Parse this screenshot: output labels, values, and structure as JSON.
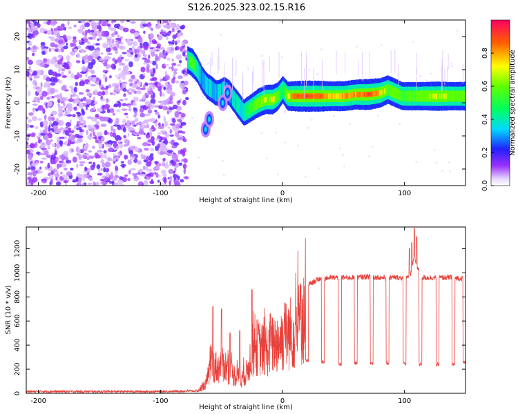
{
  "chart_data": [
    {
      "type": "heatmap",
      "title": "S126.2025.323.02.15.R16",
      "xlabel": "Height of straight line (km)",
      "ylabel": "Frequency (Hz)",
      "xlim": [
        -210,
        150
      ],
      "ylim": [
        -25,
        25
      ],
      "xticks": [
        {
          "value": -200,
          "label": "-200"
        },
        {
          "value": -100,
          "label": "-100"
        },
        {
          "value": 0,
          "label": "0"
        },
        {
          "value": 100,
          "label": "100"
        }
      ],
      "yticks": [
        {
          "value": 20,
          "label": "20"
        },
        {
          "value": 10,
          "label": "10"
        },
        {
          "value": 0,
          "label": "0"
        },
        {
          "value": -10,
          "label": "-10"
        },
        {
          "value": -20,
          "label": "-20"
        }
      ],
      "noise_region_x": [
        -210,
        -78
      ],
      "ridge": {
        "x": [
          -78,
          -74,
          -70,
          -66,
          -62,
          -58,
          -55,
          -52,
          -48,
          -44,
          -40,
          -36,
          -32,
          -28,
          -24,
          -20,
          -14,
          -8,
          -4,
          0,
          4,
          10,
          20,
          30,
          40,
          50,
          60,
          70,
          80,
          86,
          92,
          98,
          104,
          110,
          120,
          130,
          140,
          150
        ],
        "y": [
          13,
          12,
          10,
          7,
          5,
          4,
          3,
          3,
          4,
          3,
          1,
          -1,
          -3,
          -2,
          -1,
          0,
          1,
          1,
          2,
          4,
          2,
          2,
          2,
          2,
          2,
          2,
          2.5,
          2.5,
          3,
          4,
          3,
          2,
          2,
          2,
          2,
          2,
          2,
          2
        ],
        "amp": [
          0.45,
          0.6,
          0.4,
          0.3,
          0.35,
          0.35,
          0.3,
          0.35,
          0.3,
          0.3,
          0.35,
          0.4,
          0.35,
          0.5,
          0.55,
          0.65,
          0.7,
          0.75,
          0.55,
          0.45,
          0.7,
          0.85,
          0.9,
          0.9,
          0.75,
          0.8,
          0.8,
          0.9,
          0.75,
          0.6,
          0.65,
          0.55,
          0.6,
          0.6,
          0.65,
          0.7,
          0.6,
          0.65
        ]
      },
      "side_lobes": [
        {
          "x": -63,
          "y": -8,
          "amp": 0.35
        },
        {
          "x": -60,
          "y": -5,
          "amp": 0.35
        },
        {
          "x": -49,
          "y": 0,
          "amp": 0.35
        },
        {
          "x": -45,
          "y": 3,
          "amp": 0.35
        }
      ],
      "colorbar": {
        "label": "Normalized spectral amplitude",
        "range": [
          0.0,
          1.0
        ],
        "ticks": [
          {
            "value": 0.0,
            "label": "0.0"
          },
          {
            "value": 0.2,
            "label": "0.2"
          },
          {
            "value": 0.4,
            "label": "0.4"
          },
          {
            "value": 0.6,
            "label": "0.6"
          },
          {
            "value": 0.8,
            "label": "0.8"
          }
        ]
      }
    },
    {
      "type": "line",
      "xlabel": "Height of straight line (km)",
      "ylabel": "SNR (10 * v/v)",
      "xlim": [
        -210,
        150
      ],
      "ylim": [
        0,
        1380
      ],
      "color": "#e8403a",
      "xticks": [
        {
          "value": -200,
          "label": "-200"
        },
        {
          "value": -100,
          "label": "-100"
        },
        {
          "value": 0,
          "label": "0"
        },
        {
          "value": 100,
          "label": "100"
        }
      ],
      "yticks": [
        {
          "value": 0,
          "label": "0"
        },
        {
          "value": 200,
          "label": "200"
        },
        {
          "value": 400,
          "label": "400"
        },
        {
          "value": 600,
          "label": "600"
        },
        {
          "value": 800,
          "label": "800"
        },
        {
          "value": 1000,
          "label": "1000"
        },
        {
          "value": 1200,
          "label": "1200"
        }
      ],
      "envelope": {
        "x": [
          -210,
          -150,
          -100,
          -70,
          -63,
          -58,
          -53,
          -48,
          -43,
          -38,
          -33,
          -29,
          -25,
          -20,
          -15,
          -10,
          -5,
          0,
          5,
          10,
          15,
          20,
          25,
          30,
          40,
          50,
          60,
          70,
          80,
          90,
          100,
          105,
          108,
          110,
          115,
          120,
          130,
          140,
          150
        ],
        "y": [
          15,
          15,
          15,
          20,
          100,
          350,
          300,
          350,
          250,
          200,
          180,
          250,
          500,
          550,
          500,
          550,
          600,
          650,
          700,
          750,
          850,
          900,
          920,
          950,
          960,
          960,
          960,
          970,
          960,
          960,
          960,
          980,
          1150,
          1050,
          960,
          960,
          960,
          960,
          950
        ]
      },
      "dropouts": [
        {
          "x": 20,
          "y": 270
        },
        {
          "x": 33,
          "y": 260
        },
        {
          "x": 47,
          "y": 240
        },
        {
          "x": 60,
          "y": 250
        },
        {
          "x": 73,
          "y": 250
        },
        {
          "x": 86,
          "y": 250
        },
        {
          "x": 100,
          "y": 250
        },
        {
          "x": 113,
          "y": 240
        },
        {
          "x": 127,
          "y": 240
        },
        {
          "x": 140,
          "y": 240
        },
        {
          "x": 149,
          "y": 260
        }
      ],
      "spikes": [
        {
          "x": -57,
          "y": 720
        },
        {
          "x": -50,
          "y": 700
        },
        {
          "x": -43,
          "y": 500
        },
        {
          "x": -35,
          "y": 520
        },
        {
          "x": -25,
          "y": 860
        },
        {
          "x": -10,
          "y": 660
        },
        {
          "x": 2,
          "y": 750
        },
        {
          "x": 15,
          "y": 900
        },
        {
          "x": 108,
          "y": 1370
        },
        {
          "x": 106,
          "y": 1250
        },
        {
          "x": 104,
          "y": 1200
        },
        {
          "x": 110,
          "y": 1300
        }
      ]
    }
  ]
}
